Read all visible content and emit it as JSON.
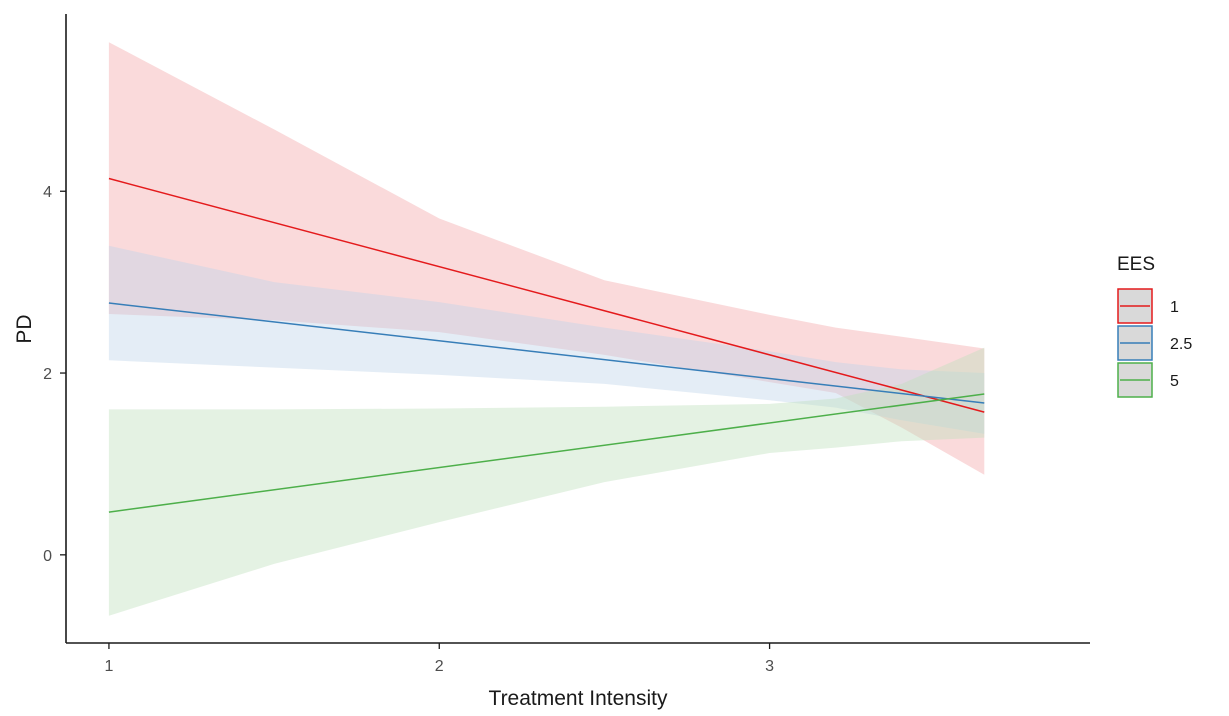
{
  "chart_data": {
    "type": "line",
    "xlabel": "Treatment Intensity",
    "ylabel": "PD",
    "xlim": [
      0.87,
      3.97
    ],
    "ylim": [
      -0.97,
      5.95
    ],
    "x_ticks": [
      {
        "value": 1,
        "label": "1"
      },
      {
        "value": 2,
        "label": "2"
      },
      {
        "value": 3,
        "label": "3"
      }
    ],
    "y_ticks": [
      {
        "value": 0,
        "label": "0"
      },
      {
        "value": 2,
        "label": "2"
      },
      {
        "value": 4,
        "label": "4"
      }
    ],
    "grid": false,
    "legend": {
      "title": "EES",
      "position": "right"
    },
    "series": [
      {
        "name": "1",
        "color": "#e41a1c",
        "fill": "#f4a6aa",
        "x": [
          1,
          3.65
        ],
        "y": [
          4.14,
          1.57
        ],
        "band_x": [
          1,
          1.5,
          2,
          2.5,
          3,
          3.2,
          3.4,
          3.65
        ],
        "band_upper": [
          5.64,
          4.68,
          3.7,
          3.02,
          2.64,
          2.5,
          2.4,
          2.27
        ],
        "band_lower": [
          2.65,
          2.58,
          2.45,
          2.2,
          1.9,
          1.78,
          1.4,
          0.88
        ]
      },
      {
        "name": "2.5",
        "color": "#377eb8",
        "fill": "#bfd3ea",
        "x": [
          1,
          3.65
        ],
        "y": [
          2.77,
          1.67
        ],
        "band_x": [
          1,
          1.5,
          2,
          2.5,
          3,
          3.2,
          3.4,
          3.65
        ],
        "band_upper": [
          3.4,
          3.0,
          2.78,
          2.5,
          2.24,
          2.12,
          2.04,
          2.0
        ],
        "band_lower": [
          2.14,
          2.06,
          1.98,
          1.88,
          1.7,
          1.62,
          1.48,
          1.33
        ]
      },
      {
        "name": "5",
        "color": "#4daf4a",
        "fill": "#bfe0bd",
        "x": [
          1,
          3.65
        ],
        "y": [
          0.47,
          1.77
        ],
        "band_x": [
          1,
          1.5,
          2,
          2.5,
          3,
          3.2,
          3.4,
          3.65
        ],
        "band_upper": [
          1.6,
          1.6,
          1.61,
          1.63,
          1.66,
          1.72,
          1.88,
          2.28
        ],
        "band_lower": [
          -0.67,
          -0.1,
          0.36,
          0.8,
          1.12,
          1.18,
          1.25,
          1.29
        ]
      }
    ]
  }
}
